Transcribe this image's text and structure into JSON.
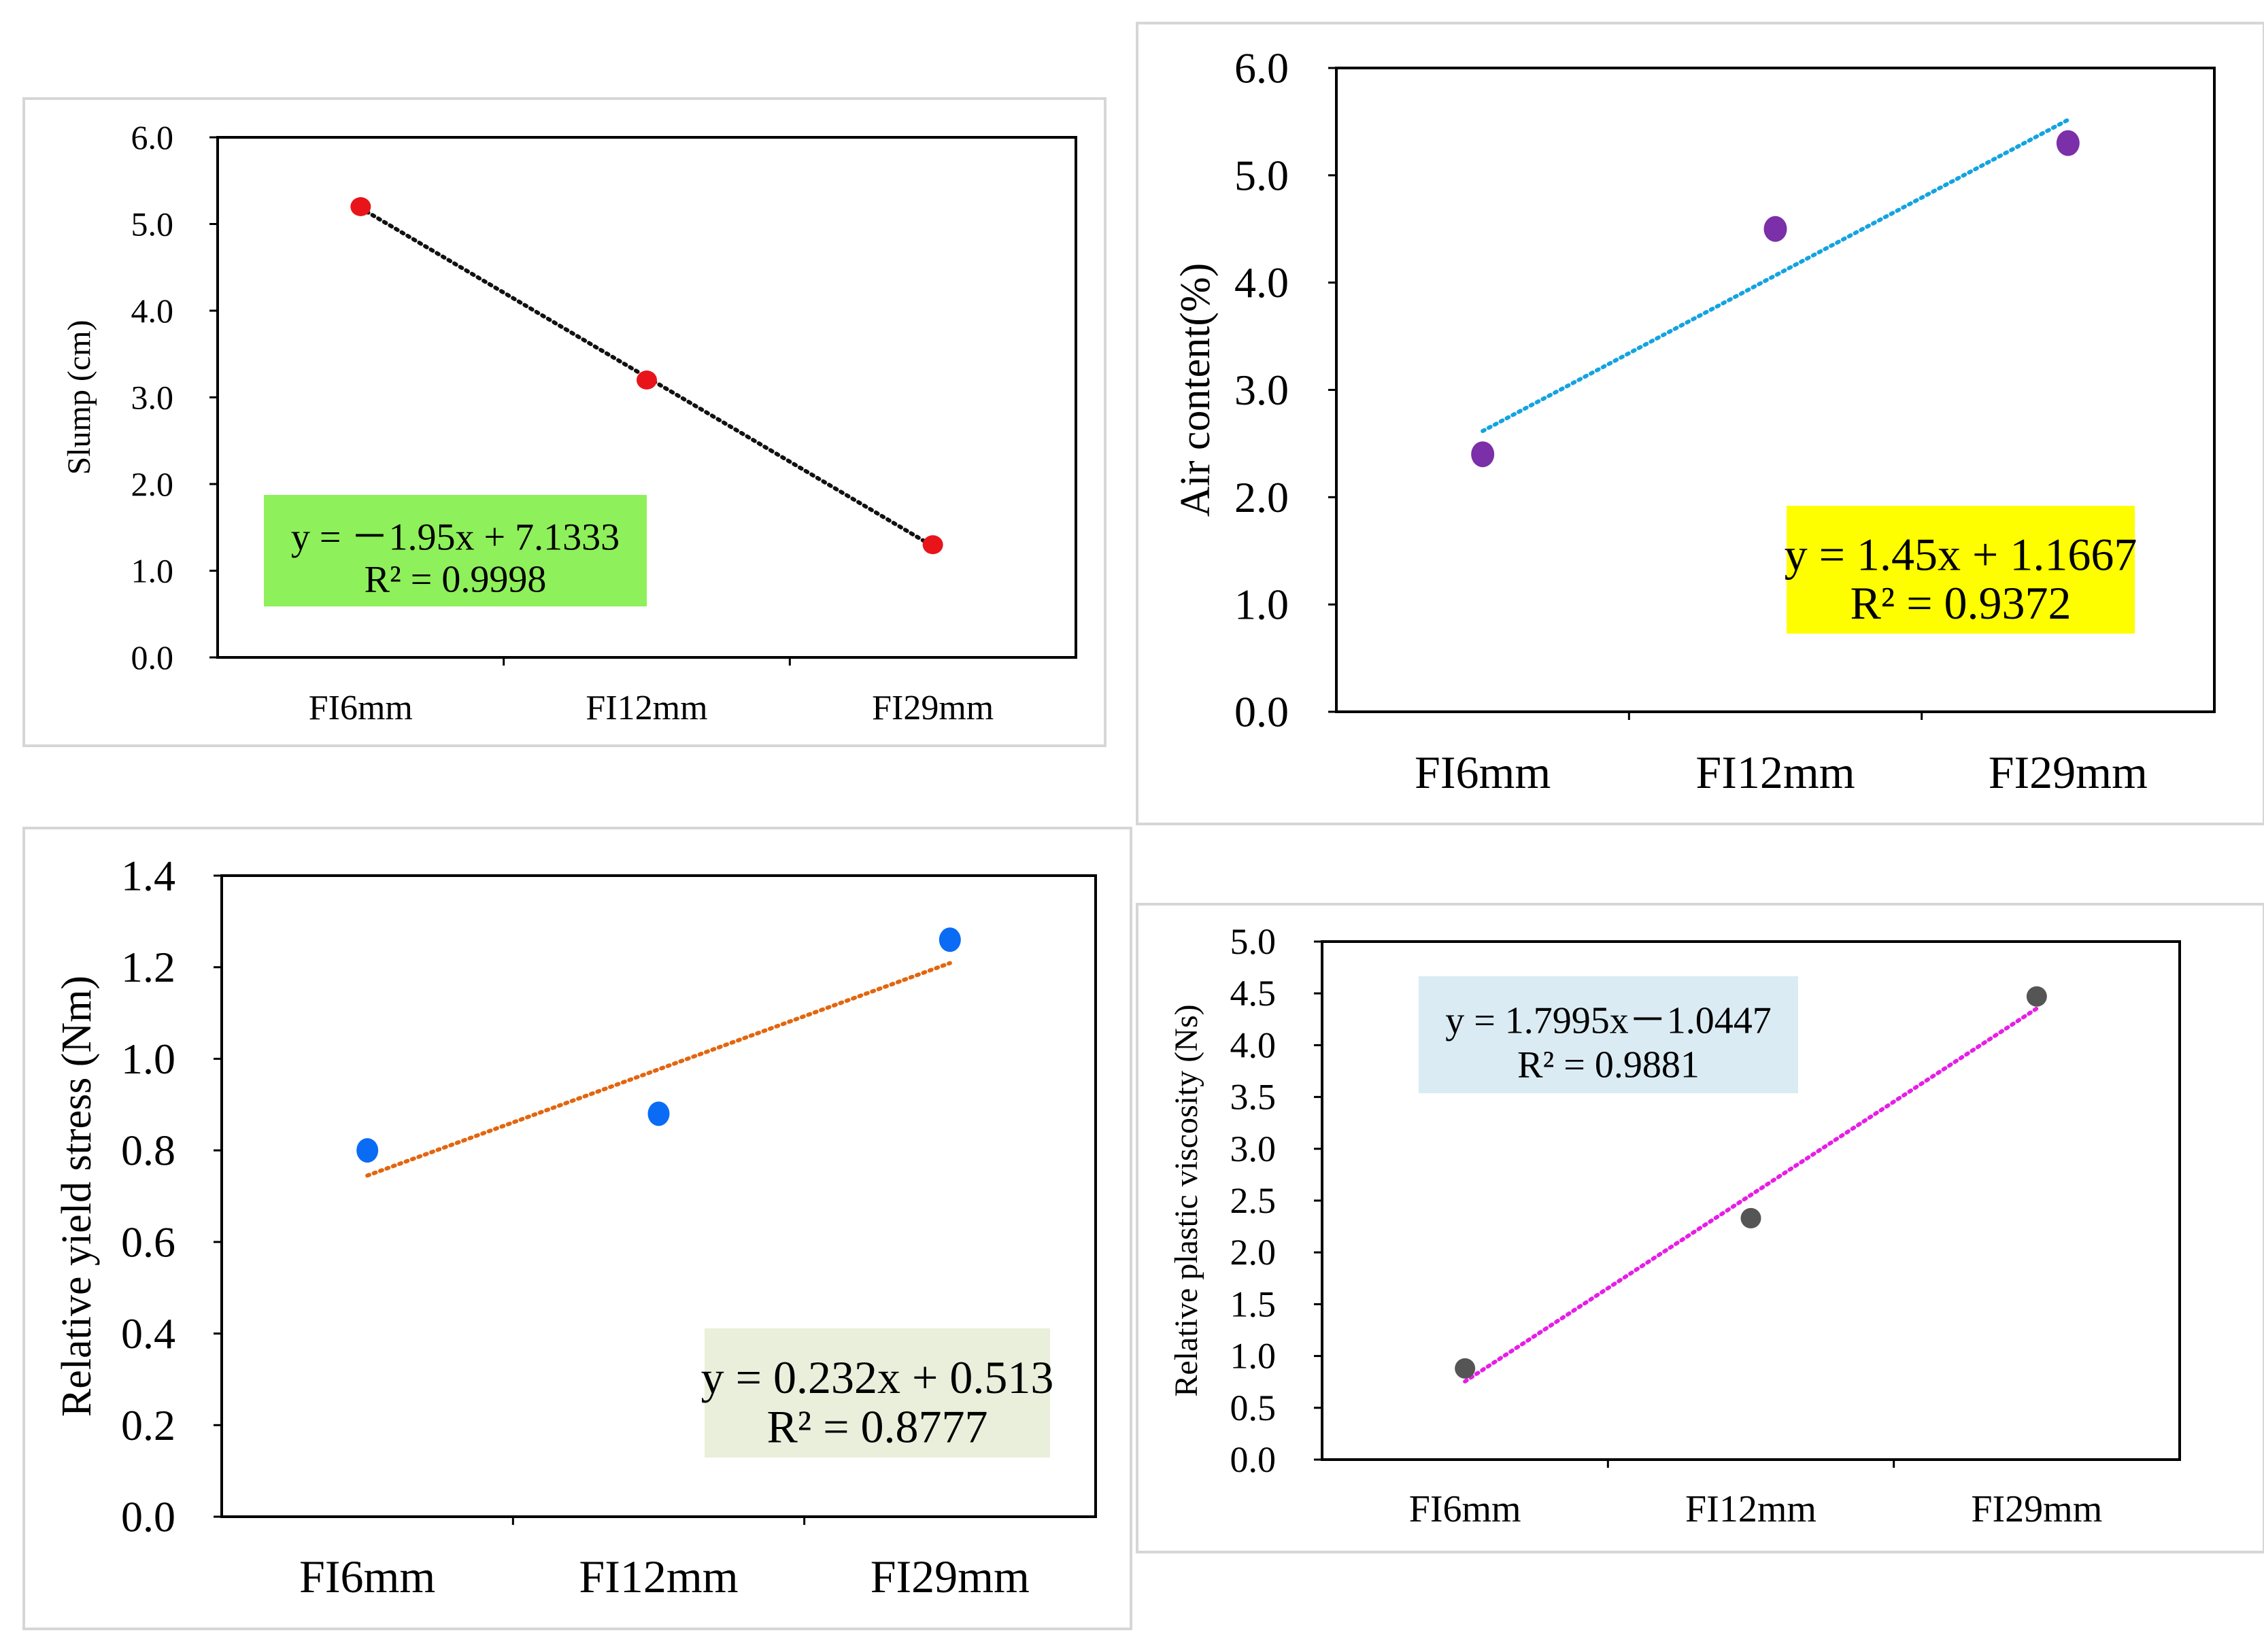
{
  "chart_data": [
    {
      "id": "slump",
      "type": "scatter",
      "categories": [
        "FI6mm",
        "FI12mm",
        "FI29mm"
      ],
      "values": [
        5.2,
        3.2,
        1.3
      ],
      "title": "",
      "xlabel": "",
      "ylabel": "Slump (cm)",
      "ylim": [
        0,
        6
      ],
      "yticks": [
        "0.0",
        "1.0",
        "2.0",
        "3.0",
        "4.0",
        "5.0",
        "6.0"
      ],
      "marker_color": "#e8141a",
      "trendline": {
        "type": "linear",
        "slope": -1.95,
        "intercept": 7.1333,
        "color": "#111111",
        "style": "dotted"
      },
      "equation": {
        "line1": "y = －1.95x + 7.1333",
        "line2": "R² = 0.9998",
        "background": "#8ef05a",
        "placement": "bottom-left"
      }
    },
    {
      "id": "air",
      "type": "scatter",
      "categories": [
        "FI6mm",
        "FI12mm",
        "FI29mm"
      ],
      "values": [
        2.4,
        4.5,
        5.3
      ],
      "title": "",
      "xlabel": "",
      "ylabel": "Air content(%)",
      "ylim": [
        0,
        6
      ],
      "yticks": [
        "0.0",
        "1.0",
        "2.0",
        "3.0",
        "4.0",
        "5.0",
        "6.0"
      ],
      "marker_color": "#7b2fa8",
      "trendline": {
        "type": "linear",
        "slope": 1.45,
        "intercept": 1.1667,
        "color": "#15a3e0",
        "style": "dotted"
      },
      "equation": {
        "line1": "y = 1.45x + 1.1667",
        "line2": "R² = 0.9372",
        "background": "#fefe00",
        "placement": "bottom-right"
      }
    },
    {
      "id": "yield",
      "type": "scatter",
      "categories": [
        "FI6mm",
        "FI12mm",
        "FI29mm"
      ],
      "values": [
        0.8,
        0.88,
        1.26
      ],
      "title": "",
      "xlabel": "",
      "ylabel": "Relative yield stress (Nm)",
      "ylim": [
        0,
        1.4
      ],
      "yticks": [
        "0.0",
        "0.2",
        "0.4",
        "0.6",
        "0.8",
        "1.0",
        "1.2",
        "1.4"
      ],
      "marker_color": "#0a6cf5",
      "trendline": {
        "type": "linear",
        "slope": 0.232,
        "intercept": 0.513,
        "color": "#e2660f",
        "style": "dotted"
      },
      "equation": {
        "line1": "y = 0.232x + 0.513",
        "line2": "R² = 0.8777",
        "background": "#eaefdc",
        "placement": "bottom-right"
      }
    },
    {
      "id": "viscosity",
      "type": "scatter",
      "categories": [
        "FI6mm",
        "FI12mm",
        "FI29mm"
      ],
      "values": [
        0.88,
        2.33,
        4.47
      ],
      "title": "",
      "xlabel": "",
      "ylabel": "Relative plastic viscosity (Ns)",
      "ylim": [
        0,
        5
      ],
      "yticks": [
        "0.0",
        "0.5",
        "1.0",
        "1.5",
        "2.0",
        "2.5",
        "3.0",
        "3.5",
        "4.0",
        "4.5",
        "5.0"
      ],
      "marker_color": "#555555",
      "trendline": {
        "type": "linear",
        "slope": 1.7995,
        "intercept": -1.0447,
        "color": "#e61ee6",
        "style": "dotted"
      },
      "equation": {
        "line1": "y = 1.7995x－1.0447",
        "line2": "R² = 0.9881",
        "background": "#daebf3",
        "placement": "top-left"
      }
    }
  ]
}
